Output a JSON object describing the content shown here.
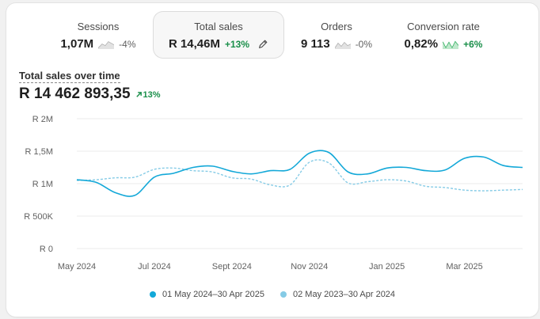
{
  "metrics": [
    {
      "label": "Sessions",
      "value": "1,07M",
      "change": "-4%",
      "trend": "neutral",
      "spark_icon": "sparkline-icon"
    },
    {
      "label": "Total sales",
      "value": "R 14,46M",
      "change": "+13%",
      "trend": "up",
      "spark_icon": "pencil-icon",
      "selected": true
    },
    {
      "label": "Orders",
      "value": "9 113",
      "change": "-0%",
      "trend": "neutral",
      "spark_icon": "sparkline-icon"
    },
    {
      "label": "Conversion rate",
      "value": "0,82%",
      "change": "+6%",
      "trend": "up",
      "spark_icon": "sparkline-icon"
    }
  ],
  "chart": {
    "title": "Total sales over time",
    "total": "R 14 462 893,35",
    "total_change": "13%"
  },
  "colors": {
    "current": "#13a8d8",
    "previous": "#85cbe6",
    "positive": "#1a8f4a"
  },
  "chart_data": {
    "type": "line",
    "ylim": [
      0,
      2000000
    ],
    "yticks": [
      {
        "value": 0,
        "label": "R 0"
      },
      {
        "value": 500000,
        "label": "R 500K"
      },
      {
        "value": 1000000,
        "label": "R 1M"
      },
      {
        "value": 1500000,
        "label": "R 1,5M"
      },
      {
        "value": 2000000,
        "label": "R 2M"
      }
    ],
    "xticks": [
      "May 2024",
      "Jul 2024",
      "Sept 2024",
      "Nov 2024",
      "Jan 2025",
      "Mar 2025"
    ],
    "grid": true,
    "legend_position": "bottom",
    "series": [
      {
        "name": "01 May 2024–30 Apr 2025",
        "style": "solid",
        "values": [
          1060000,
          1020000,
          860000,
          820000,
          1100000,
          1160000,
          1250000,
          1270000,
          1190000,
          1150000,
          1200000,
          1220000,
          1470000,
          1480000,
          1180000,
          1150000,
          1240000,
          1250000,
          1200000,
          1210000,
          1390000,
          1410000,
          1280000,
          1250000
        ]
      },
      {
        "name": "02 May 2023–30 Apr 2024",
        "style": "dashed",
        "values": [
          1050000,
          1060000,
          1090000,
          1100000,
          1220000,
          1240000,
          1200000,
          1180000,
          1090000,
          1070000,
          980000,
          980000,
          1330000,
          1320000,
          1010000,
          1030000,
          1060000,
          1040000,
          960000,
          940000,
          900000,
          890000,
          900000,
          910000
        ]
      }
    ]
  }
}
